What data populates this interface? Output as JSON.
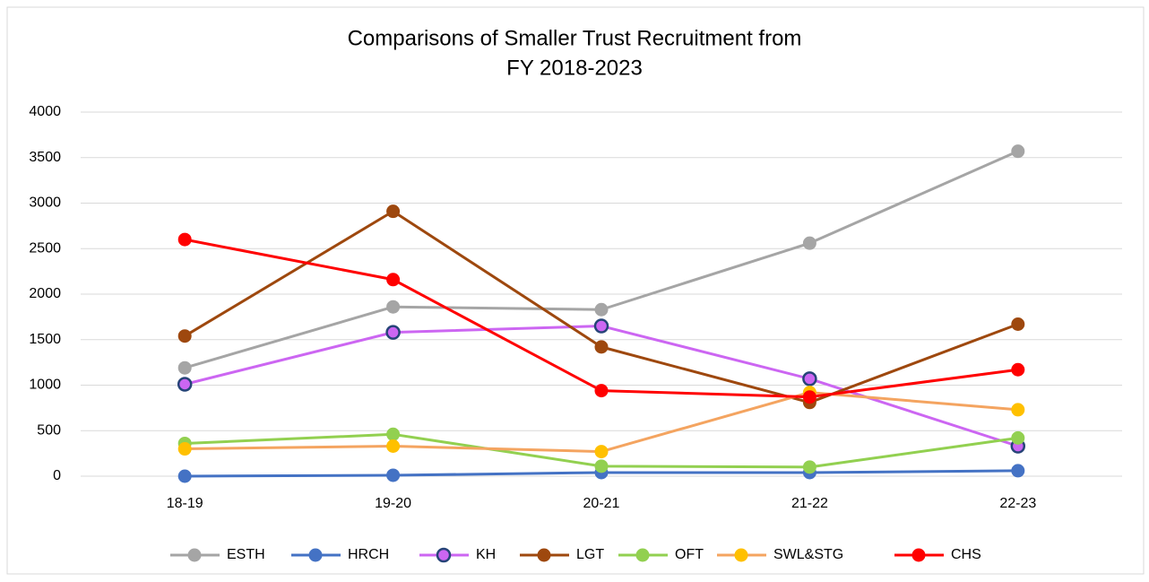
{
  "chart_data": {
    "type": "line",
    "title": [
      "Comparisons of Smaller Trust Recruitment from",
      "FY  2018-2023"
    ],
    "categories": [
      "18-19",
      "19-20",
      "20-21",
      "21-22",
      "22-23"
    ],
    "series": [
      {
        "name": "ESTH",
        "color": "#a5a5a5",
        "values": [
          1190,
          1860,
          1830,
          2560,
          3570
        ]
      },
      {
        "name": "HRCH",
        "color": "#4472c4",
        "values": [
          0,
          10,
          40,
          40,
          60
        ]
      },
      {
        "name": "KH",
        "color": "#cc66f2",
        "marker_edge": "#264478",
        "values": [
          1010,
          1580,
          1650,
          1070,
          330
        ]
      },
      {
        "name": "LGT",
        "color": "#9e480e",
        "values": [
          1540,
          2910,
          1420,
          810,
          1670
        ]
      },
      {
        "name": "OFT",
        "color": "#92d050",
        "values": [
          360,
          460,
          110,
          100,
          420
        ]
      },
      {
        "name": "SWL&STG",
        "color": "#f4a460",
        "marker_fill": "#ffc000",
        "values": [
          300,
          330,
          270,
          920,
          730
        ]
      },
      {
        "name": "CHS",
        "color": "#ff0000",
        "values": [
          2600,
          2160,
          940,
          870,
          1170
        ]
      }
    ],
    "ylim": [
      0,
      4000
    ],
    "yticks": [
      0,
      500,
      1000,
      1500,
      2000,
      2500,
      3000,
      3500,
      4000
    ],
    "grid": true,
    "legend": "bottom"
  }
}
